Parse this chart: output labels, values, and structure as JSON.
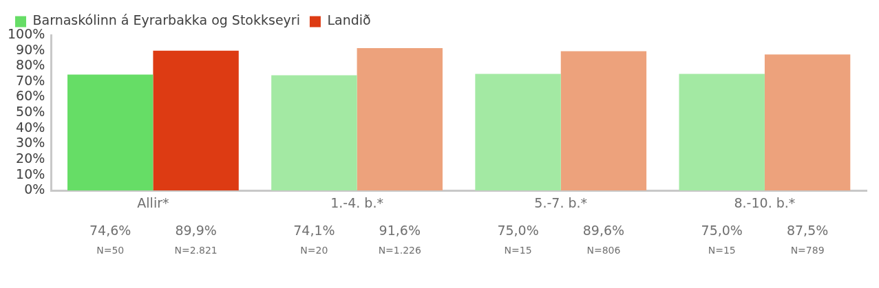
{
  "chart_data": {
    "type": "bar",
    "categories": [
      "Allir*",
      "1.-4. b.*",
      "5.-7. b.*",
      "8.-10. b.*"
    ],
    "series": [
      {
        "name": "Barnaskólinn á Eyrarbakka og Stokkseyri",
        "colors": [
          "#66dd66",
          "#a3e9a3",
          "#a3e9a3",
          "#a3e9a3"
        ],
        "values": [
          74.6,
          74.1,
          75.0,
          75.0
        ],
        "value_labels": [
          "74,6%",
          "74,1%",
          "75,0%",
          "75,0%"
        ]
      },
      {
        "name": "Landið",
        "colors": [
          "#dd3b13",
          "#eda27c",
          "#eda27c",
          "#eda27c"
        ],
        "values": [
          89.9,
          91.6,
          89.6,
          87.5
        ],
        "value_labels": [
          "89,9%",
          "91,6%",
          "89,6%",
          "87,5%"
        ]
      }
    ],
    "ylim": [
      0,
      100
    ],
    "yticks": [
      {
        "value": 0,
        "label": "0%"
      },
      {
        "value": 10,
        "label": "10%"
      },
      {
        "value": 20,
        "label": "20%"
      },
      {
        "value": 30,
        "label": "30%"
      },
      {
        "value": 40,
        "label": "40%"
      },
      {
        "value": 50,
        "label": "50%"
      },
      {
        "value": 60,
        "label": "60%"
      },
      {
        "value": 70,
        "label": "70%"
      },
      {
        "value": 80,
        "label": "80%"
      },
      {
        "value": 90,
        "label": "90%"
      },
      {
        "value": 100,
        "label": "100%"
      }
    ],
    "annotations": [
      "N=50",
      "N=2.821",
      "N=20",
      "N=1.226",
      "N=15",
      "N=806",
      "N=15",
      "N=789"
    ],
    "grid": false,
    "legend": "top left"
  }
}
